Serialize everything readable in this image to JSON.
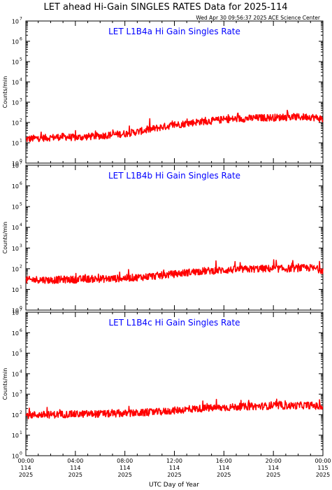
{
  "page_title": "LET ahead Hi-Gain SINGLES RATES Data for 2025-114",
  "timestamp": "Wed Apr 30 09:56:37 2025 ACE Science Center",
  "chart_data": {
    "type": "line",
    "series_color": "#ff0000",
    "title_color": "#0000ff",
    "ylabel": "Counts/min",
    "xlabel": "UTC Day of Year",
    "y_scale": "log",
    "ylim": [
      1,
      10000000
    ],
    "y_ticks": [
      {
        "base": "10",
        "exp": "0"
      },
      {
        "base": "10",
        "exp": "1"
      },
      {
        "base": "10",
        "exp": "2"
      },
      {
        "base": "10",
        "exp": "3"
      },
      {
        "base": "10",
        "exp": "4"
      },
      {
        "base": "10",
        "exp": "5"
      },
      {
        "base": "10",
        "exp": "6"
      },
      {
        "base": "10",
        "exp": "7"
      }
    ],
    "xlim_hours": [
      0,
      24
    ],
    "x_ticks": [
      {
        "time": "00:00",
        "day": "114",
        "year": "2025"
      },
      {
        "time": "04:00",
        "day": "114",
        "year": "2025"
      },
      {
        "time": "08:00",
        "day": "114",
        "year": "2025"
      },
      {
        "time": "12:00",
        "day": "114",
        "year": "2025"
      },
      {
        "time": "16:00",
        "day": "114",
        "year": "2025"
      },
      {
        "time": "20:00",
        "day": "114",
        "year": "2025"
      },
      {
        "time": "00:00",
        "day": "115",
        "year": "2025"
      }
    ],
    "panels": [
      {
        "title": "LET L1B4a Hi Gain Singles Rate",
        "series": [
          {
            "hours": [
              0,
              1,
              2,
              3,
              4,
              5,
              6,
              7,
              8,
              9,
              10,
              11,
              12,
              13,
              14,
              15,
              16,
              17,
              18,
              19,
              20,
              21,
              22,
              23,
              24
            ],
            "values": [
              15,
              17,
              18,
              20,
              18,
              20,
              22,
              25,
              28,
              35,
              45,
              60,
              75,
              90,
              110,
              120,
              140,
              150,
              160,
              170,
              175,
              180,
              185,
              190,
              150
            ]
          }
        ]
      },
      {
        "title": "LET L1B4b Hi Gain Singles Rate",
        "series": [
          {
            "hours": [
              0,
              1,
              2,
              3,
              4,
              5,
              6,
              7,
              8,
              9,
              10,
              11,
              12,
              13,
              14,
              15,
              16,
              17,
              18,
              19,
              20,
              21,
              22,
              23,
              24
            ],
            "values": [
              28,
              30,
              28,
              30,
              30,
              32,
              32,
              33,
              35,
              38,
              42,
              48,
              55,
              65,
              75,
              80,
              85,
              90,
              95,
              100,
              100,
              100,
              105,
              110,
              85
            ]
          }
        ]
      },
      {
        "title": "LET L1B4c Hi Gain Singles Rate",
        "series": [
          {
            "hours": [
              0,
              1,
              2,
              3,
              4,
              5,
              6,
              7,
              8,
              9,
              10,
              11,
              12,
              13,
              14,
              15,
              16,
              17,
              18,
              19,
              20,
              21,
              22,
              23,
              24
            ],
            "values": [
              95,
              100,
              100,
              105,
              105,
              110,
              110,
              110,
              115,
              120,
              130,
              140,
              160,
              180,
              200,
              210,
              220,
              240,
              250,
              260,
              270,
              270,
              280,
              290,
              230
            ]
          }
        ]
      }
    ]
  }
}
